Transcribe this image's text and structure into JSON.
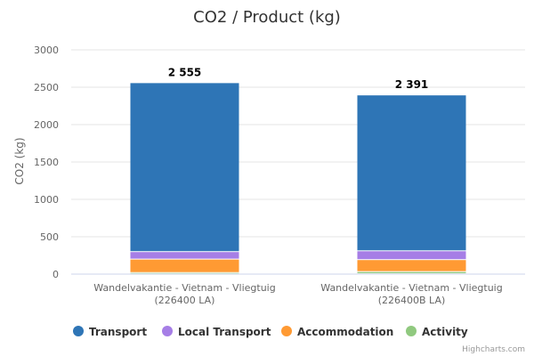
{
  "chart_data": {
    "type": "bar",
    "stacked": true,
    "title": "CO2 / Product (kg)",
    "xlabel": "",
    "ylabel": "CO2 (kg)",
    "ylim": [
      0,
      3000
    ],
    "yticks": [
      "0",
      "500",
      "1000",
      "1500",
      "2000",
      "2500",
      "3000"
    ],
    "ytick_values": [
      0,
      500,
      1000,
      1500,
      2000,
      2500,
      3000
    ],
    "categories": [
      [
        "Wandelvakantie - Vietnam - Vliegtuig",
        "(226400 LA)"
      ],
      [
        "Wandelvakantie - Vietnam - Vliegtuig",
        "(226400B LA)"
      ]
    ],
    "totals": [
      2555,
      2391
    ],
    "total_labels": [
      "2 555",
      "2 391"
    ],
    "series": [
      {
        "name": "Activity",
        "color": "#90c97f",
        "values": [
          15,
          28
        ]
      },
      {
        "name": "Accommodation",
        "color": "#ff9a33",
        "values": [
          180,
          160
        ]
      },
      {
        "name": "Local Transport",
        "color": "#a67ee6",
        "values": [
          100,
          118
        ]
      },
      {
        "name": "Transport",
        "color": "#2e75b6",
        "values": [
          2260,
          2085
        ]
      }
    ],
    "legend": [
      "Transport",
      "Local Transport",
      "Accommodation",
      "Activity"
    ],
    "legend_colors": [
      "#2e75b6",
      "#a67ee6",
      "#ff9a33",
      "#90c97f"
    ],
    "legend_position": "bottom",
    "grid": true,
    "credits": "Highcharts.com"
  }
}
